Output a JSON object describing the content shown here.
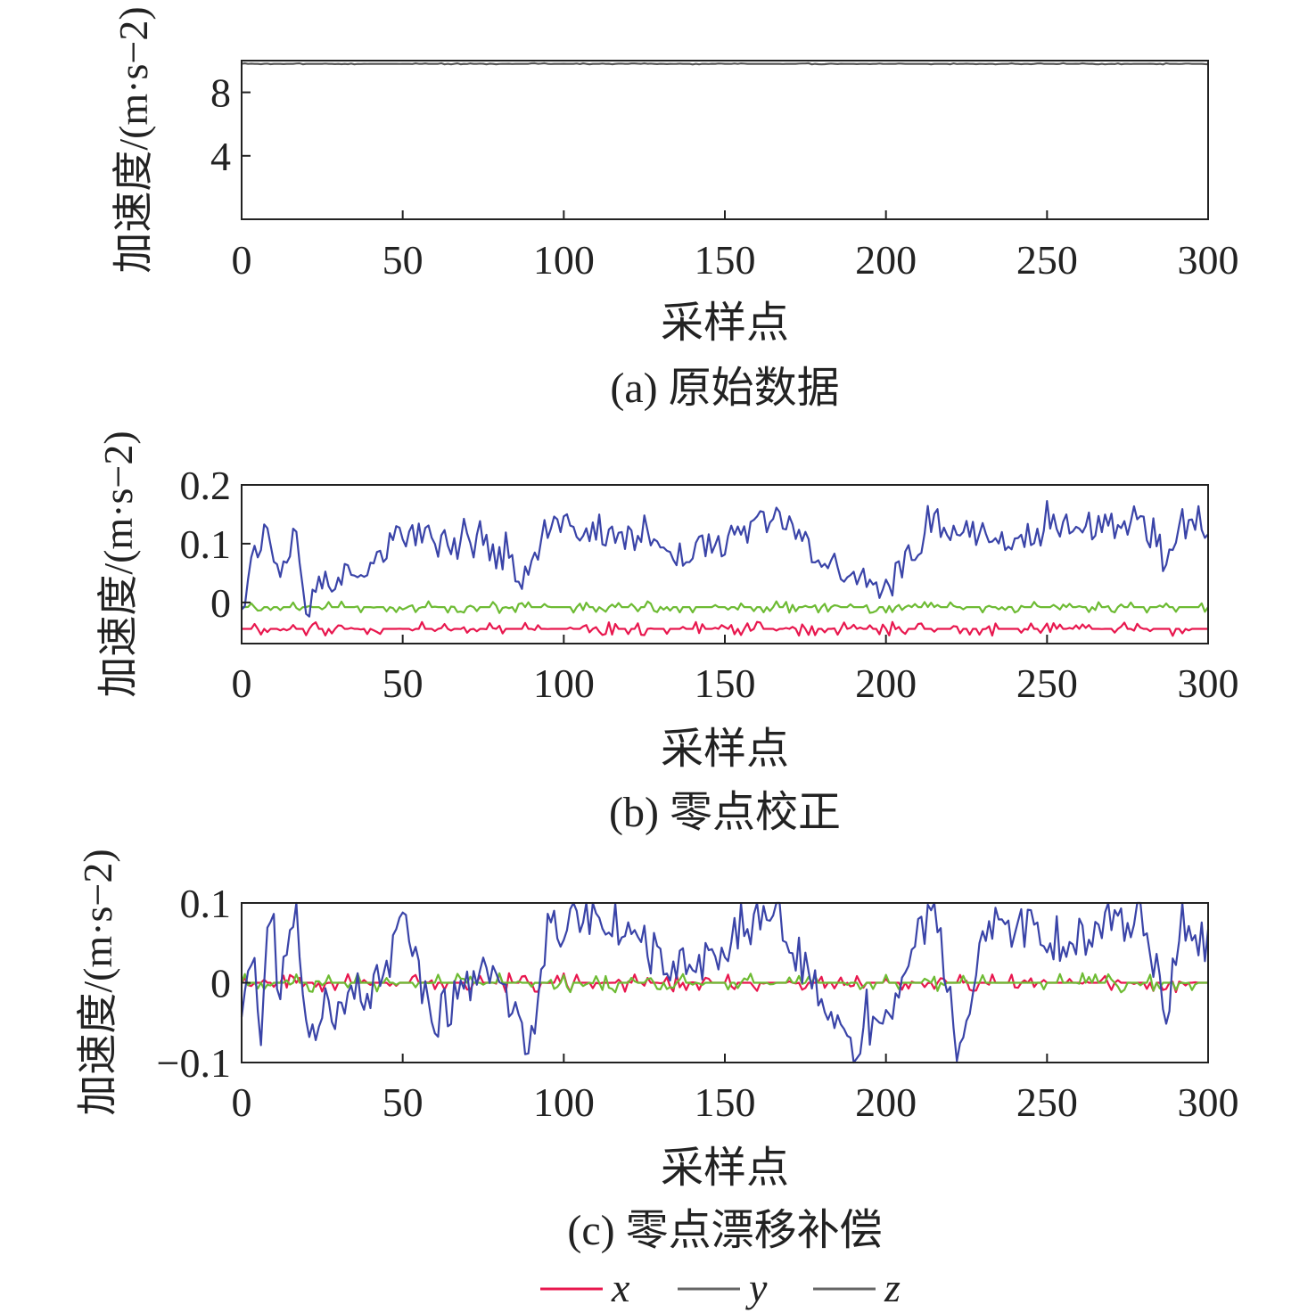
{
  "colors": {
    "x": "#e8174e",
    "y": "#6dbb33",
    "z": "#3a44a8",
    "axis": "#222222",
    "raw": "#555555",
    "legend_line": "#666666"
  },
  "legend": [
    {
      "key": "x",
      "label": "x"
    },
    {
      "key": "y",
      "label": "y"
    },
    {
      "key": "z",
      "label": "z"
    }
  ],
  "chart_data": [
    {
      "type": "line",
      "caption": "(a) 原始数据",
      "xlabel": "采样点",
      "ylabel": "加速度/(m·s−2)",
      "xlim": [
        0,
        300
      ],
      "ylim": [
        0,
        10
      ],
      "xticks": [
        0,
        50,
        100,
        150,
        200,
        250,
        300
      ],
      "yticks": [
        4,
        8
      ],
      "yticklabels": [
        "4",
        "8"
      ],
      "series": [
        {
          "key": "z",
          "color": "#555555",
          "generator": {
            "base": 9.8,
            "spread": 0.04,
            "seed": 3
          }
        }
      ]
    },
    {
      "type": "line",
      "caption": "(b) 零点校正",
      "xlabel": "采样点",
      "ylabel": "加速度/(m·s−2)",
      "xlim": [
        0,
        300
      ],
      "ylim": [
        -0.07,
        0.2
      ],
      "xticks": [
        0,
        50,
        100,
        150,
        200,
        250,
        300
      ],
      "yticks": [
        0,
        0.1,
        0.2
      ],
      "yticklabels": [
        "0",
        "0.1",
        "0.2"
      ],
      "series": [
        {
          "key": "x",
          "generator": {
            "base": -0.045,
            "spread": 0.012,
            "seed": 11
          }
        },
        {
          "key": "y",
          "generator": {
            "base": -0.008,
            "spread": 0.01,
            "seed": 23
          }
        },
        {
          "key": "z",
          "generator": {
            "base": 0.06,
            "spread": 0.035,
            "seed": 37,
            "spiky": true,
            "peaks": [
              [
                0,
                0.0
              ],
              [
                3,
                0.075
              ],
              [
                7,
                0.12
              ],
              [
                12,
                0.06
              ],
              [
                17,
                0.13
              ],
              [
                20,
                -0.015
              ],
              [
                25,
                0.03
              ],
              [
                40,
                0.07
              ],
              [
                50,
                0.12
              ],
              [
                60,
                0.1
              ],
              [
                75,
                0.1
              ],
              [
                88,
                0.04
              ],
              [
                95,
                0.12
              ],
              [
                103,
                0.13
              ],
              [
                108,
                0.12
              ],
              [
                120,
                0.115
              ],
              [
                133,
                0.08
              ],
              [
                150,
                0.1
              ],
              [
                165,
                0.15
              ],
              [
                180,
                0.07
              ],
              [
                192,
                0.04
              ],
              [
                200,
                0.02
              ],
              [
                215,
                0.14
              ],
              [
                222,
                0.12
              ],
              [
                230,
                0.12
              ],
              [
                240,
                0.11
              ],
              [
                255,
                0.13
              ],
              [
                270,
                0.13
              ],
              [
                280,
                0.14
              ],
              [
                287,
                0.05
              ],
              [
                292,
                0.13
              ],
              [
                300,
                0.1
              ]
            ]
          }
        }
      ]
    },
    {
      "type": "line",
      "caption": "(c) 零点漂移补偿",
      "xlabel": "采样点",
      "ylabel": "加速度/(m·s−2)",
      "xlim": [
        0,
        300
      ],
      "ylim": [
        -0.1,
        0.1
      ],
      "xticks": [
        0,
        50,
        100,
        150,
        200,
        250,
        300
      ],
      "yticks": [
        -0.1,
        0,
        0.1
      ],
      "yticklabels": [
        "−0.1",
        "0",
        "0.1"
      ],
      "series": [
        {
          "key": "x",
          "generator": {
            "base": 0.0,
            "spread": 0.012,
            "seed": 51
          }
        },
        {
          "key": "y",
          "generator": {
            "base": 0.0,
            "spread": 0.012,
            "seed": 63
          }
        },
        {
          "key": "z",
          "generator": {
            "base": 0.0,
            "spread": 0.04,
            "seed": 77,
            "spiky": true,
            "peaks": [
              [
                0,
                -0.03
              ],
              [
                3,
                0.02
              ],
              [
                6,
                -0.06
              ],
              [
                8,
                0.07
              ],
              [
                12,
                0.0
              ],
              [
                17,
                0.075
              ],
              [
                20,
                -0.075
              ],
              [
                30,
                -0.04
              ],
              [
                40,
                -0.02
              ],
              [
                50,
                0.065
              ],
              [
                60,
                -0.05
              ],
              [
                75,
                0.02
              ],
              [
                90,
                -0.075
              ],
              [
                95,
                0.06
              ],
              [
                100,
                0.07
              ],
              [
                107,
                0.09
              ],
              [
                120,
                0.06
              ],
              [
                133,
                0.02
              ],
              [
                150,
                0.03
              ],
              [
                165,
                0.1
              ],
              [
                180,
                -0.03
              ],
              [
                192,
                -0.085
              ],
              [
                200,
                -0.04
              ],
              [
                215,
                0.09
              ],
              [
                220,
                -0.03
              ],
              [
                223,
                -0.095
              ],
              [
                230,
                0.07
              ],
              [
                240,
                0.07
              ],
              [
                255,
                0.05
              ],
              [
                270,
                0.07
              ],
              [
                280,
                0.085
              ],
              [
                287,
                -0.04
              ],
              [
                292,
                0.08
              ],
              [
                300,
                0.04
              ]
            ]
          }
        }
      ]
    }
  ]
}
